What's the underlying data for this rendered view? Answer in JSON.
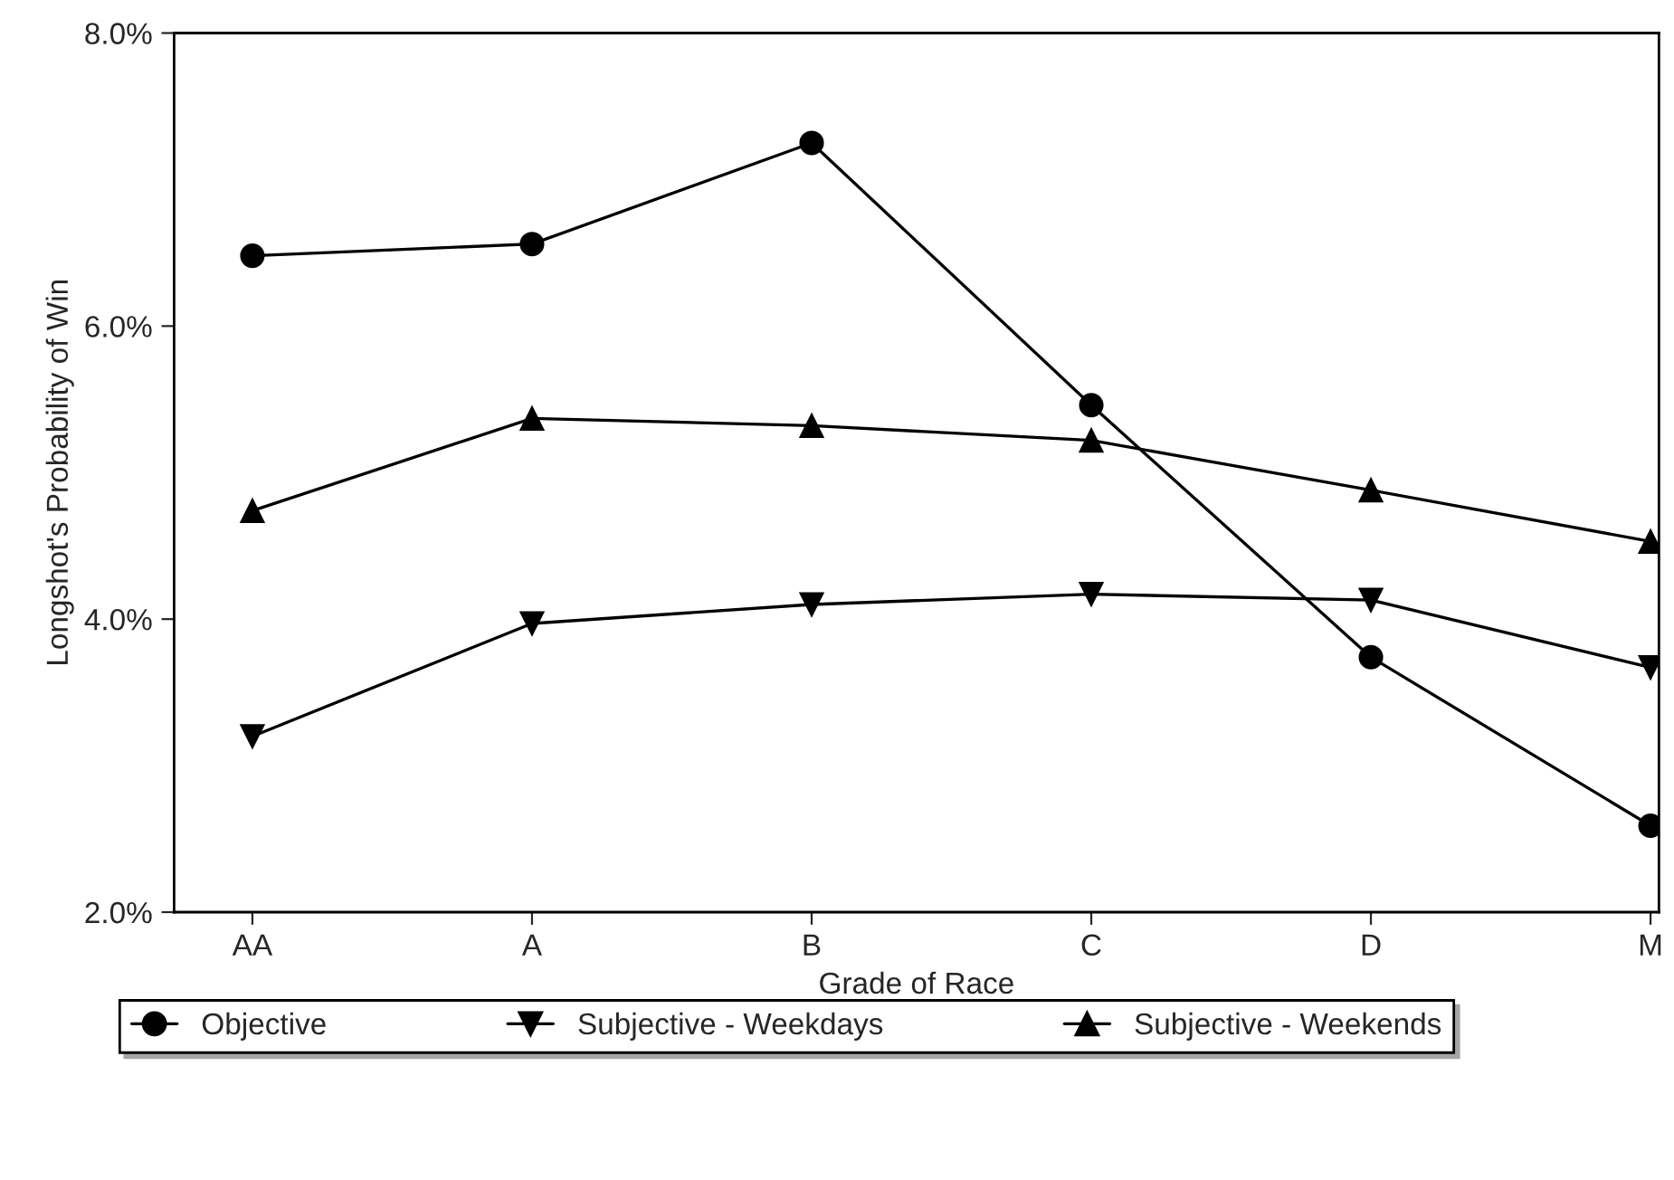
{
  "chart_data": {
    "type": "line",
    "xlabel": "Grade of Race",
    "ylabel": "Longshot's Probability of Win",
    "categories": [
      "AA",
      "A",
      "B",
      "C",
      "D",
      "M"
    ],
    "series": [
      {
        "name": "Objective",
        "color": "#000000",
        "marker": "circle",
        "values": [
          6.48,
          6.56,
          7.25,
          5.46,
          3.74,
          2.59
        ]
      },
      {
        "name": "Subjective - Weekdays",
        "color": "#000000",
        "marker": "triangle_down",
        "values": [
          3.2,
          3.97,
          4.1,
          4.17,
          4.13,
          3.67
        ]
      },
      {
        "name": "Subjective - Weekends",
        "color": "#000000",
        "marker": "triangle",
        "values": [
          4.74,
          5.37,
          5.32,
          5.22,
          4.88,
          4.53
        ]
      }
    ],
    "ylim": [
      2,
      8
    ],
    "yticks": [
      {
        "value": 2,
        "label": "2.0%"
      },
      {
        "value": 4,
        "label": "4.0%"
      },
      {
        "value": 6,
        "label": "6.0%"
      },
      {
        "value": 8,
        "label": "8.0%"
      }
    ],
    "grid": false,
    "legend": "bottom",
    "line_style": "solid"
  }
}
